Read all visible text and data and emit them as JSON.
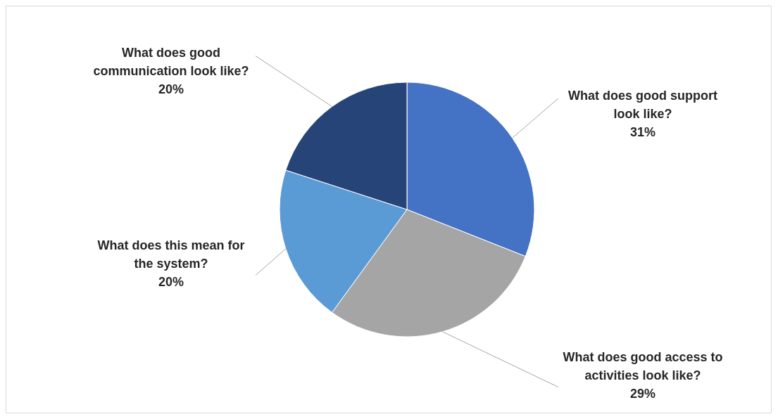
{
  "chart_data": {
    "type": "pie",
    "categories": [
      "What does good support look like?",
      "What does good access to activities look like?",
      "What does this mean for the system?",
      "What does good communication look like?"
    ],
    "values": [
      31,
      29,
      20,
      20
    ],
    "colors": [
      "#4472c4",
      "#a5a5a5",
      "#5b9bd5",
      "#264478"
    ],
    "value_labels": [
      "31%",
      "29%",
      "20%",
      "20%"
    ]
  }
}
